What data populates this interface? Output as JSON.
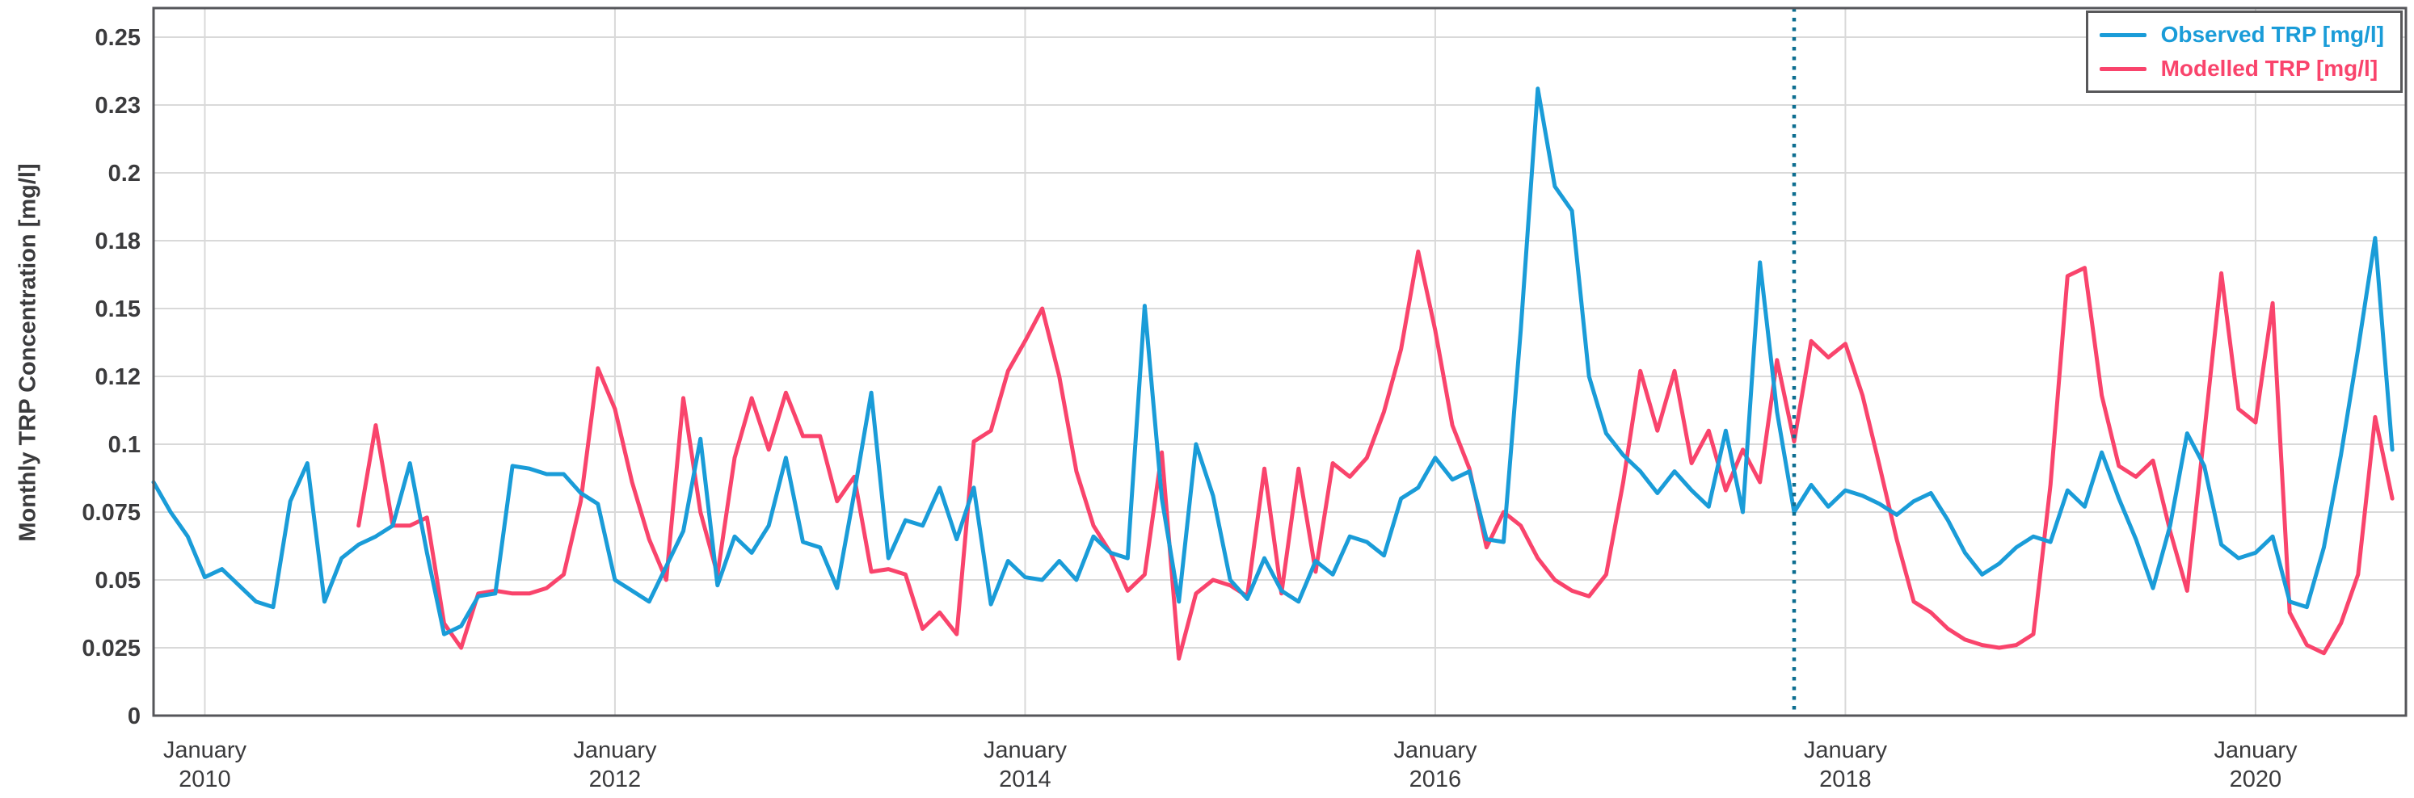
{
  "figure": {
    "y_axis_title": "Monthly TRP Concentration [mg/l]"
  },
  "legend": {
    "position": "top-right",
    "items": [
      {
        "name": "observed",
        "label": "Observed TRP [mg/l]",
        "color": "#1a9cd8"
      },
      {
        "name": "modelled",
        "label": "Modelled TRP [mg/l]",
        "color": "#f9446c"
      }
    ]
  },
  "chart_data": {
    "type": "line",
    "title": "",
    "xlabel": "",
    "ylabel": "Monthly TRP Concentration [mg/l]",
    "grid": true,
    "grid_color": "#d9d9d9",
    "frame_color": "#55565a",
    "text_color": "#3b3b3d",
    "background": "#ffffff",
    "ylim": [
      0,
      0.2607
    ],
    "y_ticks": [
      {
        "label": "0",
        "value": 0
      },
      {
        "label": "0.025",
        "value": 0.025
      },
      {
        "label": "0.05",
        "value": 0.05
      },
      {
        "label": "0.075",
        "value": 0.075
      },
      {
        "label": "0.1",
        "value": 0.1
      },
      {
        "label": "0.12",
        "value": 0.125
      },
      {
        "label": "0.15",
        "value": 0.15
      },
      {
        "label": "0.18",
        "value": 0.175
      },
      {
        "label": "0.2",
        "value": 0.2
      },
      {
        "label": "0.23",
        "value": 0.225
      },
      {
        "label": "0.25",
        "value": 0.25
      }
    ],
    "x_start_month": "2009-10",
    "x_end_month": "2020-09",
    "x_ticks": [
      {
        "line1": "January",
        "line2": "2010",
        "month": "2010-01"
      },
      {
        "line1": "January",
        "line2": "2012",
        "month": "2012-01"
      },
      {
        "line1": "January",
        "line2": "2014",
        "month": "2014-01"
      },
      {
        "line1": "January",
        "line2": "2016",
        "month": "2016-01"
      },
      {
        "line1": "January",
        "line2": "2018",
        "month": "2018-01"
      },
      {
        "line1": "January",
        "line2": "2020",
        "month": "2020-01"
      }
    ],
    "divider": {
      "month": "2017-10",
      "color": "#0d6e90",
      "style": "dotted",
      "meaning": "calibration/validation split"
    },
    "series": [
      {
        "name": "Modelled TRP [mg/l]",
        "color": "#f9446c",
        "start_month": "2010-10",
        "values": [
          0.07,
          0.107,
          0.07,
          0.07,
          0.073,
          0.034,
          0.025,
          0.045,
          0.046,
          0.045,
          0.045,
          0.047,
          0.052,
          0.079,
          0.128,
          0.113,
          0.086,
          0.065,
          0.05,
          0.117,
          0.075,
          0.052,
          0.095,
          0.117,
          0.098,
          0.119,
          0.103,
          0.103,
          0.079,
          0.088,
          0.053,
          0.054,
          0.052,
          0.032,
          0.038,
          0.03,
          0.101,
          0.105,
          0.127,
          0.138,
          0.15,
          0.125,
          0.09,
          0.07,
          0.06,
          0.046,
          0.052,
          0.097,
          0.021,
          0.045,
          0.05,
          0.048,
          0.044,
          0.091,
          0.045,
          0.091,
          0.053,
          0.093,
          0.088,
          0.095,
          0.112,
          0.135,
          0.171,
          0.142,
          0.107,
          0.091,
          0.062,
          0.075,
          0.07,
          0.058,
          0.05,
          0.046,
          0.044,
          0.052,
          0.086,
          0.127,
          0.105,
          0.127,
          0.093,
          0.105,
          0.083,
          0.098,
          0.086,
          0.131,
          0.101,
          0.138,
          0.132,
          0.137,
          0.118,
          0.092,
          0.065,
          0.042,
          0.038,
          0.032,
          0.028,
          0.026,
          0.025,
          0.026,
          0.03,
          0.085,
          0.162,
          0.165,
          0.118,
          0.092,
          0.088,
          0.094,
          0.068,
          0.046,
          0.104,
          0.163,
          0.113,
          0.108,
          0.152,
          0.038,
          0.026,
          0.023,
          0.034,
          0.052,
          0.11,
          0.08
        ]
      },
      {
        "name": "Observed TRP [mg/l]",
        "color": "#1a9cd8",
        "start_month": "2009-10",
        "values": [
          0.086,
          0.075,
          0.066,
          0.051,
          0.054,
          0.048,
          0.042,
          0.04,
          0.079,
          0.093,
          0.042,
          0.058,
          0.063,
          0.066,
          0.07,
          0.093,
          0.06,
          0.03,
          0.033,
          0.044,
          0.045,
          0.092,
          0.091,
          0.089,
          0.089,
          0.082,
          0.078,
          0.05,
          0.046,
          0.042,
          0.055,
          0.068,
          0.102,
          0.048,
          0.066,
          0.06,
          0.07,
          0.095,
          0.064,
          0.062,
          0.047,
          0.082,
          0.119,
          0.058,
          0.072,
          0.07,
          0.084,
          0.065,
          0.084,
          0.041,
          0.057,
          0.051,
          0.05,
          0.057,
          0.05,
          0.066,
          0.06,
          0.058,
          0.151,
          0.08,
          0.042,
          0.1,
          0.081,
          0.05,
          0.043,
          0.058,
          0.046,
          0.042,
          0.057,
          0.052,
          0.066,
          0.064,
          0.059,
          0.08,
          0.084,
          0.095,
          0.087,
          0.09,
          0.065,
          0.064,
          0.142,
          0.231,
          0.195,
          0.186,
          0.125,
          0.104,
          0.096,
          0.09,
          0.082,
          0.09,
          0.083,
          0.077,
          0.105,
          0.075,
          0.167,
          0.112,
          0.075,
          0.085,
          0.077,
          0.083,
          0.081,
          0.078,
          0.074,
          0.079,
          0.082,
          0.072,
          0.06,
          0.052,
          0.056,
          0.062,
          0.066,
          0.064,
          0.083,
          0.077,
          0.097,
          0.08,
          0.065,
          0.047,
          0.07,
          0.104,
          0.092,
          0.063,
          0.058,
          0.06,
          0.066,
          0.042,
          0.04,
          0.062,
          0.096,
          0.135,
          0.176,
          0.098
        ]
      }
    ]
  }
}
